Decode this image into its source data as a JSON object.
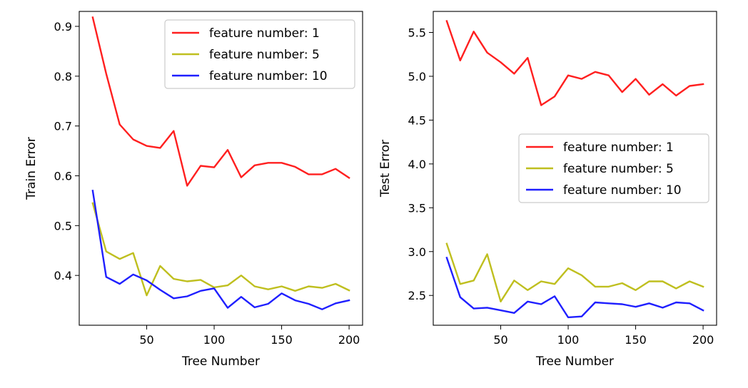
{
  "chart_data": [
    {
      "type": "line",
      "xlabel": "Tree Number",
      "ylabel": "Train Error",
      "xlim": [
        0,
        210
      ],
      "ylim": [
        0.3,
        0.93
      ],
      "xticks": [
        50,
        100,
        150,
        200
      ],
      "yticks": [
        0.4,
        0.5,
        0.6,
        0.7,
        0.8,
        0.9
      ],
      "ytick_format": "%.1f",
      "legend_position": "top-right",
      "x": [
        10,
        20,
        30,
        40,
        50,
        60,
        70,
        80,
        90,
        100,
        110,
        120,
        130,
        140,
        150,
        160,
        170,
        180,
        190,
        200
      ],
      "series": [
        {
          "name": "feature number: 1",
          "color": "#ff1f1f",
          "values": [
            0.918,
            0.805,
            0.703,
            0.673,
            0.66,
            0.656,
            0.69,
            0.58,
            0.62,
            0.617,
            0.652,
            0.597,
            0.621,
            0.626,
            0.626,
            0.618,
            0.603,
            0.603,
            0.614,
            0.596
          ]
        },
        {
          "name": "feature number: 5",
          "color": "#bfbf1f",
          "values": [
            0.545,
            0.448,
            0.433,
            0.445,
            0.36,
            0.419,
            0.393,
            0.388,
            0.391,
            0.376,
            0.38,
            0.4,
            0.378,
            0.372,
            0.378,
            0.369,
            0.378,
            0.375,
            0.383,
            0.37
          ]
        },
        {
          "name": "feature number: 10",
          "color": "#1f1fff",
          "values": [
            0.57,
            0.397,
            0.383,
            0.402,
            0.39,
            0.371,
            0.354,
            0.358,
            0.369,
            0.374,
            0.335,
            0.357,
            0.336,
            0.343,
            0.364,
            0.35,
            0.343,
            0.332,
            0.344,
            0.35
          ]
        }
      ]
    },
    {
      "type": "line",
      "xlabel": "Tree Number",
      "ylabel": "Test Error",
      "xlim": [
        0,
        210
      ],
      "ylim": [
        2.16,
        5.74
      ],
      "xticks": [
        50,
        100,
        150,
        200
      ],
      "yticks": [
        2.5,
        3.0,
        3.5,
        4.0,
        4.5,
        5.0,
        5.5
      ],
      "ytick_format": "%.1f",
      "legend_position": "center-right",
      "x": [
        10,
        20,
        30,
        40,
        50,
        60,
        70,
        80,
        90,
        100,
        110,
        120,
        130,
        140,
        150,
        160,
        170,
        180,
        190,
        200
      ],
      "series": [
        {
          "name": "feature number: 1",
          "color": "#ff1f1f",
          "values": [
            5.63,
            5.18,
            5.51,
            5.27,
            5.16,
            5.03,
            5.21,
            4.67,
            4.77,
            5.01,
            4.97,
            5.05,
            5.01,
            4.82,
            4.97,
            4.79,
            4.91,
            4.78,
            4.89,
            4.91
          ]
        },
        {
          "name": "feature number: 5",
          "color": "#bfbf1f",
          "values": [
            3.09,
            2.63,
            2.67,
            2.97,
            2.43,
            2.67,
            2.56,
            2.66,
            2.63,
            2.81,
            2.73,
            2.6,
            2.6,
            2.64,
            2.56,
            2.66,
            2.66,
            2.58,
            2.66,
            2.6
          ]
        },
        {
          "name": "feature number: 10",
          "color": "#1f1fff",
          "values": [
            2.93,
            2.48,
            2.35,
            2.36,
            2.33,
            2.3,
            2.43,
            2.4,
            2.49,
            2.25,
            2.26,
            2.42,
            2.41,
            2.4,
            2.37,
            2.41,
            2.36,
            2.42,
            2.41,
            2.33
          ]
        }
      ]
    }
  ]
}
